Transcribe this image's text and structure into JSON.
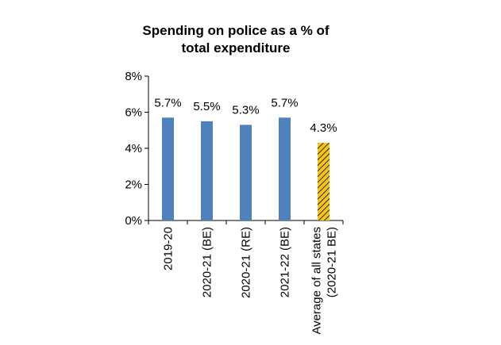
{
  "chart_data": {
    "type": "bar",
    "title": "Spending on police as a % of\ntotal expenditure",
    "categories": [
      "2019-20",
      "2020-21 (BE)",
      "2020-21 (RE)",
      "2021-22 (BE)",
      "Average of all states\n(2020-21 BE)"
    ],
    "values": [
      5.7,
      5.5,
      5.3,
      5.7,
      4.3
    ],
    "value_labels": [
      "5.7%",
      "5.5%",
      "5.3%",
      "5.7%",
      "4.3%"
    ],
    "colors": [
      "#4f81bd",
      "#4f81bd",
      "#4f81bd",
      "#4f81bd",
      "#f5c518"
    ],
    "hatch": [
      false,
      false,
      false,
      false,
      true
    ],
    "ylim": [
      0,
      8
    ],
    "yticks": [
      {
        "value": 0,
        "label": "0%"
      },
      {
        "value": 2,
        "label": "2%"
      },
      {
        "value": 4,
        "label": "4%"
      },
      {
        "value": 6,
        "label": "6%"
      },
      {
        "value": 8,
        "label": "8%"
      }
    ],
    "grid": false
  }
}
